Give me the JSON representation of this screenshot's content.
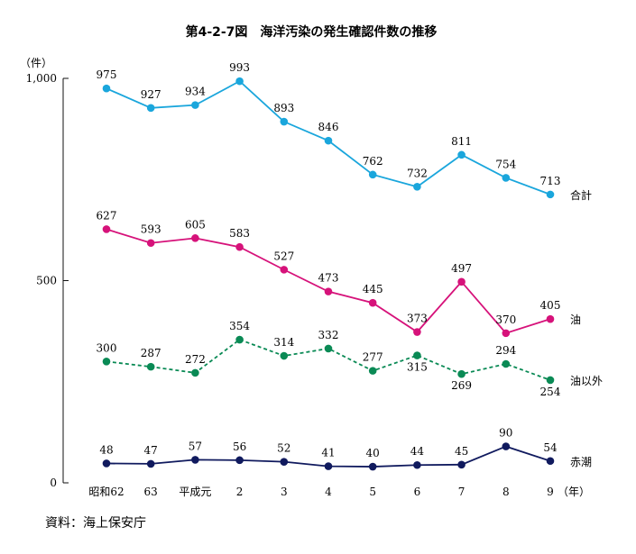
{
  "title": "第4-2-7図　海洋汚染の発生確認件数の推移",
  "y_unit": "（件）",
  "x_unit": "（年）",
  "source": "資料：海上保安庁",
  "chart_data": {
    "type": "line",
    "categories": [
      "昭和62",
      "63",
      "平成元",
      "2",
      "3",
      "4",
      "5",
      "6",
      "7",
      "8",
      "9"
    ],
    "ylim": [
      0,
      1000
    ],
    "yticks": [
      0,
      500,
      1000
    ],
    "ytick_labels": [
      "0",
      "500",
      "1,000"
    ],
    "grid": false,
    "series": [
      {
        "name": "合計",
        "color": "#1aa6dc",
        "dashed": false,
        "values": [
          975,
          927,
          934,
          993,
          893,
          846,
          762,
          732,
          811,
          754,
          713
        ]
      },
      {
        "name": "油",
        "color": "#d6127a",
        "dashed": false,
        "values": [
          627,
          593,
          605,
          583,
          527,
          473,
          445,
          373,
          497,
          370,
          405
        ]
      },
      {
        "name": "油以外",
        "color": "#0a8a55",
        "dashed": true,
        "values": [
          300,
          287,
          272,
          354,
          314,
          332,
          277,
          315,
          269,
          294,
          254
        ]
      },
      {
        "name": "赤潮",
        "color": "#101a5e",
        "dashed": false,
        "values": [
          48,
          47,
          57,
          56,
          52,
          41,
          40,
          44,
          45,
          90,
          54
        ]
      }
    ]
  }
}
